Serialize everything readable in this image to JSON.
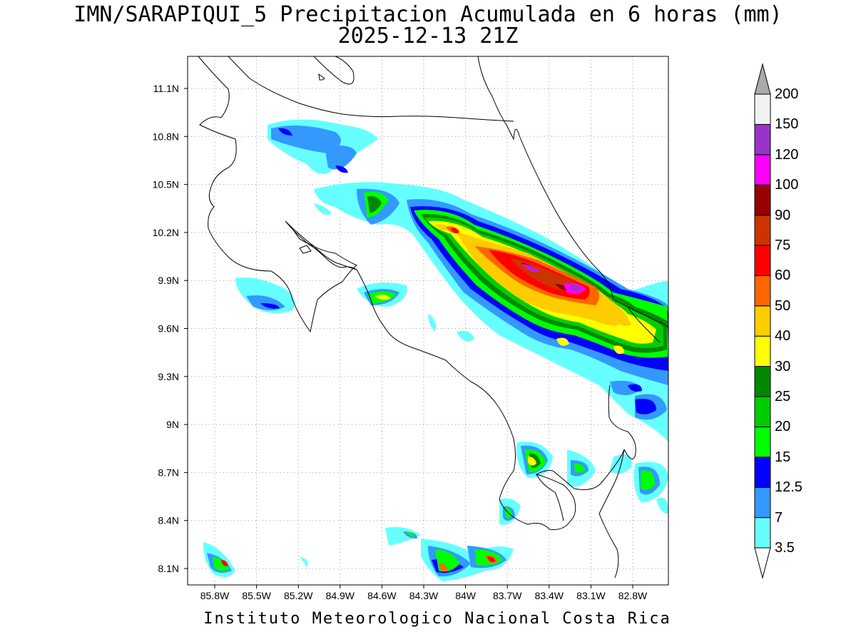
{
  "title": {
    "line1": "IMN/SARAPIQUI_5 Precipitacion Acumulada en 6 horas (mm)",
    "line2": "2025-12-13 21Z"
  },
  "footer": "Instituto Meteorologico Nacional Costa Rica",
  "map": {
    "lon_range": [
      -86.0,
      -82.6
    ],
    "lat_range": [
      8.0,
      11.3
    ],
    "lat_ticks": [
      "11.1N",
      "10.8N",
      "10.5N",
      "10.2N",
      "9.9N",
      "9.6N",
      "9.3N",
      "9N",
      "8.7N",
      "8.4N",
      "8.1N"
    ],
    "lon_ticks": [
      "85.8W",
      "85.5W",
      "85.2W",
      "84.9W",
      "84.6W",
      "84.3W",
      "84W",
      "83.7W",
      "83.4W",
      "83.1W",
      "82.8W"
    ],
    "grid": "dotted"
  },
  "colorbar": {
    "levels": [
      "3.5",
      "7",
      "12.5",
      "15",
      "20",
      "25",
      "30",
      "40",
      "50",
      "60",
      "75",
      "90",
      "100",
      "120",
      "150",
      "200"
    ],
    "colors": [
      "#66ffff",
      "#3399ff",
      "#0000ff",
      "#00ff00",
      "#00cc00",
      "#008800",
      "#ffff00",
      "#ffcc00",
      "#ff6600",
      "#ff0000",
      "#cc3300",
      "#990000",
      "#ff00ff",
      "#9933cc",
      "#f2f2f2",
      "#aaaaaa"
    ]
  }
}
